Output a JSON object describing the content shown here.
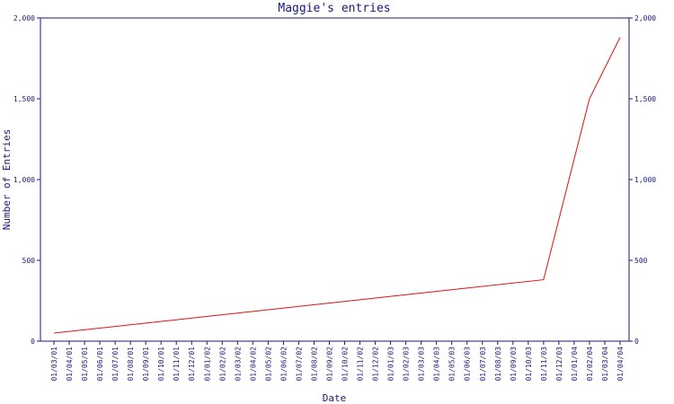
{
  "chart_data": {
    "type": "line",
    "title": "Maggie's entries",
    "xlabel": "Date",
    "ylabel": "Number of Entries",
    "ylim": [
      0,
      2000
    ],
    "y_ticks": [
      "0",
      "500",
      "1,000",
      "1,500",
      "2,000"
    ],
    "y_tick_values": [
      0,
      500,
      1000,
      1500,
      2000
    ],
    "right_axis": true,
    "grid": false,
    "colors": {
      "axis": "#1a1a7a",
      "series": "#dd1111"
    },
    "categories": [
      "01/03/01",
      "01/04/01",
      "01/05/01",
      "01/06/01",
      "01/07/01",
      "01/08/01",
      "01/09/01",
      "01/10/01",
      "01/11/01",
      "01/12/01",
      "01/01/02",
      "01/02/02",
      "01/03/02",
      "01/04/02",
      "01/05/02",
      "01/06/02",
      "01/07/02",
      "01/08/02",
      "01/09/02",
      "01/10/02",
      "01/11/02",
      "01/12/02",
      "01/01/03",
      "01/02/03",
      "01/03/03",
      "01/04/03",
      "01/05/03",
      "01/06/03",
      "01/07/03",
      "01/08/03",
      "01/09/03",
      "01/10/03",
      "01/11/03",
      "01/12/03",
      "01/01/04",
      "01/02/04",
      "01/03/04",
      "01/04/04"
    ],
    "series": [
      {
        "x": [
          "01/03/01",
          "01/11/03",
          "01/02/04",
          "01/04/04"
        ],
        "values": [
          50,
          380,
          1500,
          1880
        ]
      }
    ]
  }
}
